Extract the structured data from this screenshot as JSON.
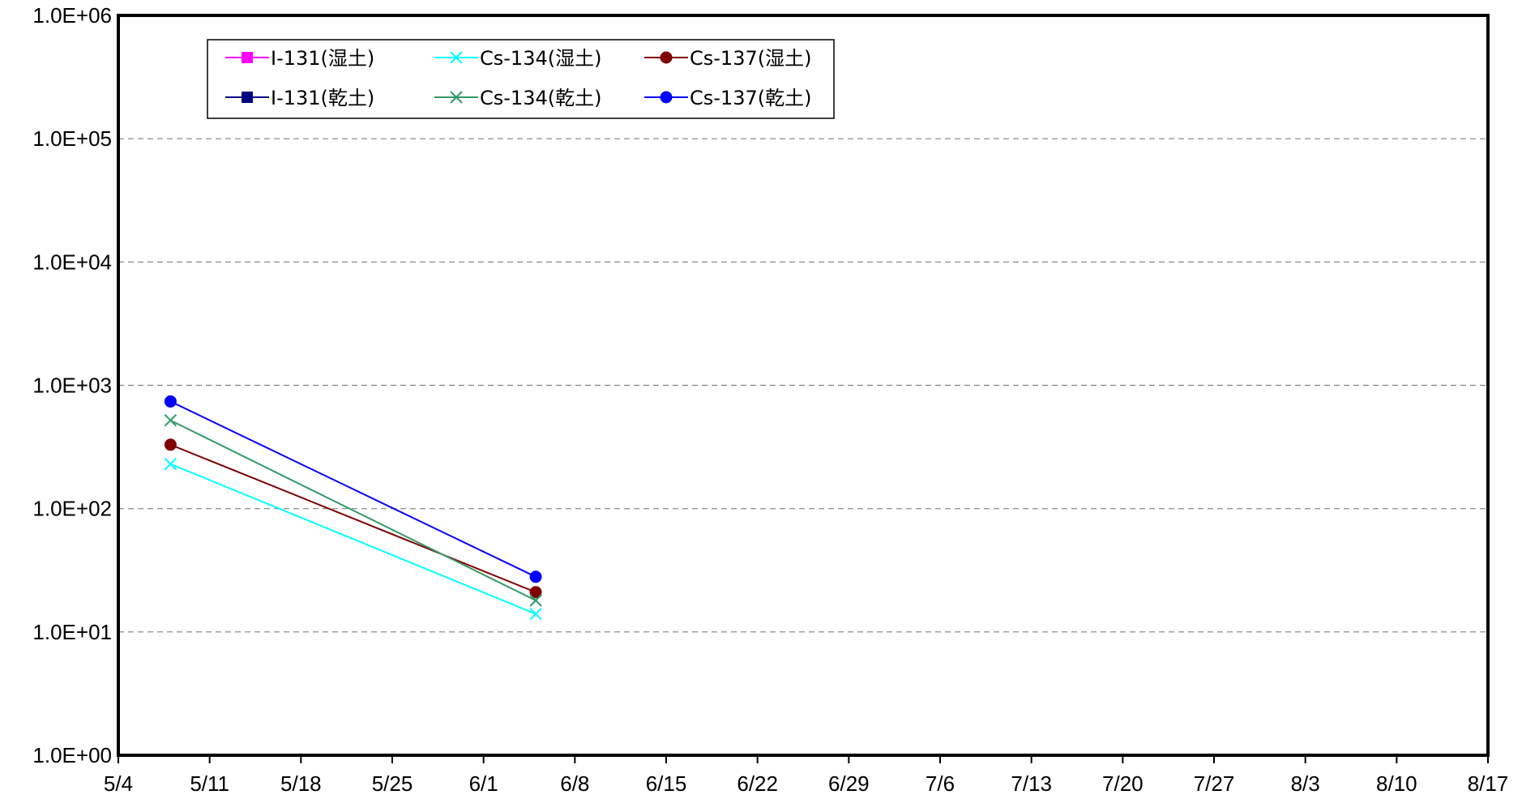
{
  "chart_data": {
    "type": "line",
    "title": "",
    "xlabel": "",
    "ylabel": "",
    "y_scale": "log",
    "ylim": [
      1,
      1000000
    ],
    "xlim": [
      "2011-05-04",
      "2011-08-17"
    ],
    "x_ticks": [
      {
        "date": "2011-05-04",
        "label": "5/4"
      },
      {
        "date": "2011-05-11",
        "label": "5/11"
      },
      {
        "date": "2011-05-18",
        "label": "5/18"
      },
      {
        "date": "2011-05-25",
        "label": "5/25"
      },
      {
        "date": "2011-06-01",
        "label": "6/1"
      },
      {
        "date": "2011-06-08",
        "label": "6/8"
      },
      {
        "date": "2011-06-15",
        "label": "6/15"
      },
      {
        "date": "2011-06-22",
        "label": "6/22"
      },
      {
        "date": "2011-06-29",
        "label": "6/29"
      },
      {
        "date": "2011-07-06",
        "label": "7/6"
      },
      {
        "date": "2011-07-13",
        "label": "7/13"
      },
      {
        "date": "2011-07-20",
        "label": "7/20"
      },
      {
        "date": "2011-07-27",
        "label": "7/27"
      },
      {
        "date": "2011-08-03",
        "label": "8/3"
      },
      {
        "date": "2011-08-10",
        "label": "8/10"
      },
      {
        "date": "2011-08-17",
        "label": "8/17"
      }
    ],
    "y_ticks": [
      {
        "value": 1,
        "label": "1.0E+00"
      },
      {
        "value": 10,
        "label": "1.0E+01"
      },
      {
        "value": 100,
        "label": "1.0E+02"
      },
      {
        "value": 1000,
        "label": "1.0E+03"
      },
      {
        "value": 10000,
        "label": "1.0E+04"
      },
      {
        "value": 100000,
        "label": "1.0E+05"
      },
      {
        "value": 1000000,
        "label": "1.0E+06"
      }
    ],
    "grid": "horizontal dashed",
    "legend_position": "top-left",
    "series": [
      {
        "name": "I-131(湿土)",
        "color": "#ff00ff",
        "marker": "square",
        "points": []
      },
      {
        "name": "Cs-134(湿土)",
        "color": "#00ffff",
        "marker": "x",
        "points": [
          {
            "x": "2011-05-08",
            "y": 230
          },
          {
            "x": "2011-06-05",
            "y": 14
          }
        ]
      },
      {
        "name": "Cs-137(湿土)",
        "color": "#800000",
        "marker": "circle",
        "points": [
          {
            "x": "2011-05-08",
            "y": 330
          },
          {
            "x": "2011-06-05",
            "y": 21
          }
        ]
      },
      {
        "name": "I-131(乾土)",
        "color": "#000080",
        "marker": "square",
        "points": []
      },
      {
        "name": "Cs-134(乾土)",
        "color": "#339966",
        "marker": "x",
        "points": [
          {
            "x": "2011-05-08",
            "y": 520
          },
          {
            "x": "2011-06-05",
            "y": 18
          }
        ]
      },
      {
        "name": "Cs-137(乾土)",
        "color": "#0000ff",
        "marker": "circle",
        "points": [
          {
            "x": "2011-05-08",
            "y": 740
          },
          {
            "x": "2011-06-05",
            "y": 28
          }
        ]
      }
    ]
  }
}
